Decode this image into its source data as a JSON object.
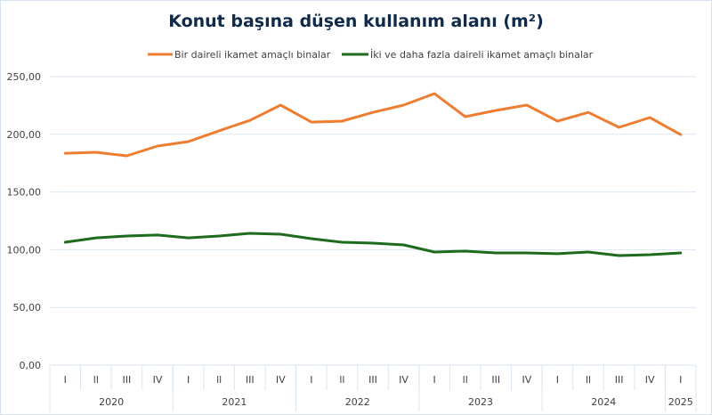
{
  "chart_data": {
    "type": "line",
    "title": "Konut başına düşen kullanım alanı (m²)",
    "xlabel": "",
    "ylabel": "",
    "ylim": [
      0,
      250
    ],
    "yticks": [
      "0,00",
      "50,00",
      "100,00",
      "150,00",
      "200,00",
      "250,00"
    ],
    "ytick_values": [
      0,
      50,
      100,
      150,
      200,
      250
    ],
    "grid": true,
    "legend": "top",
    "quarters": [
      "I",
      "ll",
      "III",
      "IV",
      "I",
      "ll",
      "III",
      "IV",
      "I",
      "ll",
      "III",
      "IV",
      "I",
      "ll",
      "III",
      "IV",
      "I",
      "ll",
      "III",
      "IV",
      "I"
    ],
    "years": [
      {
        "label": "2020",
        "count": 4
      },
      {
        "label": "2021",
        "count": 4
      },
      {
        "label": "2022",
        "count": 4
      },
      {
        "label": "2023",
        "count": 4
      },
      {
        "label": "2024",
        "count": 4
      },
      {
        "label": "2025",
        "count": 1
      }
    ],
    "series": [
      {
        "name": "Bir daireli ikamet amaçlı binalar",
        "color": "#ed7d31",
        "values": [
          183.6,
          184.4,
          181.3,
          189.8,
          193.7,
          203.0,
          212.0,
          225.3,
          210.6,
          211.4,
          219.0,
          225.3,
          235.3,
          215.3,
          220.7,
          225.3,
          211.4,
          219.0,
          206.0,
          214.5,
          199.8
        ]
      },
      {
        "name": "İki ve daha fazla daireli ikamet amaçlı binalar",
        "color": "#1e6b1e",
        "values": [
          106.5,
          110.3,
          111.9,
          112.7,
          110.3,
          111.9,
          114.2,
          113.4,
          109.6,
          106.5,
          105.7,
          104.2,
          98.0,
          98.8,
          97.2,
          97.2,
          96.5,
          98.0,
          94.9,
          95.7,
          97.2
        ]
      }
    ]
  }
}
